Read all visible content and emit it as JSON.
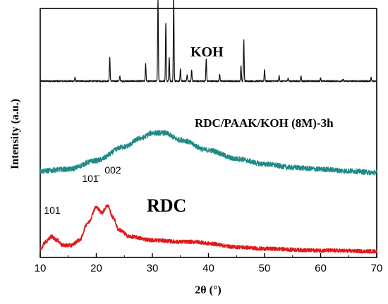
{
  "chart_data": {
    "type": "line",
    "xlabel": "2θ (°)",
    "ylabel": "Intensity (a.u.)",
    "xlim": [
      10,
      70
    ],
    "x_ticks": [
      "10",
      "20",
      "30",
      "40",
      "50",
      "60",
      "70"
    ],
    "y_ticks_shown": false,
    "series": [
      {
        "name": "KOH",
        "color": "#111111",
        "baseline": 100,
        "peaks": [
          {
            "x": 16.2,
            "h": 2
          },
          {
            "x": 22.4,
            "h": 14
          },
          {
            "x": 24.2,
            "h": 3
          },
          {
            "x": 28.8,
            "h": 10
          },
          {
            "x": 31.0,
            "h": 48
          },
          {
            "x": 32.4,
            "h": 34
          },
          {
            "x": 33.0,
            "h": 14
          },
          {
            "x": 33.8,
            "h": 49
          },
          {
            "x": 35.0,
            "h": 7
          },
          {
            "x": 36.2,
            "h": 4
          },
          {
            "x": 37.0,
            "h": 6
          },
          {
            "x": 39.6,
            "h": 13
          },
          {
            "x": 42.0,
            "h": 4
          },
          {
            "x": 45.8,
            "h": 9
          },
          {
            "x": 46.3,
            "h": 24
          },
          {
            "x": 50.0,
            "h": 7
          },
          {
            "x": 52.6,
            "h": 3
          },
          {
            "x": 54.2,
            "h": 2
          },
          {
            "x": 56.5,
            "h": 3
          },
          {
            "x": 60.0,
            "h": 2
          },
          {
            "x": 64.0,
            "h": 1
          },
          {
            "x": 69.0,
            "h": 2
          }
        ]
      },
      {
        "name": "RDC/PAAK/KOH (8M)-3h",
        "color": "#1f8a86",
        "profile": [
          [
            10,
            48
          ],
          [
            15,
            49
          ],
          [
            20,
            54
          ],
          [
            25,
            62
          ],
          [
            28,
            67
          ],
          [
            30,
            70
          ],
          [
            32,
            70
          ],
          [
            35,
            66
          ],
          [
            40,
            60
          ],
          [
            45,
            55
          ],
          [
            50,
            52
          ],
          [
            55,
            50
          ],
          [
            60,
            49
          ],
          [
            65,
            48
          ],
          [
            70,
            47
          ]
        ]
      },
      {
        "name": "RDC",
        "color": "#e01b1b",
        "profile": [
          [
            10,
            3
          ],
          [
            11,
            7
          ],
          [
            12,
            10
          ],
          [
            13,
            8
          ],
          [
            14,
            5
          ],
          [
            15.5,
            5
          ],
          [
            17,
            8
          ],
          [
            18.5,
            18
          ],
          [
            20,
            27
          ],
          [
            21,
            24
          ],
          [
            22,
            28
          ],
          [
            23,
            21
          ],
          [
            24,
            14
          ],
          [
            26,
            10
          ],
          [
            30,
            8
          ],
          [
            35,
            7
          ],
          [
            38,
            7
          ],
          [
            40,
            6
          ],
          [
            45,
            4
          ],
          [
            50,
            3
          ],
          [
            60,
            2
          ],
          [
            70,
            1.5
          ]
        ]
      }
    ],
    "annotations": [
      "KOH",
      "RDC/PAAK/KOH (8M)-3h",
      "RDC",
      "101",
      "101̄",
      "002"
    ]
  }
}
